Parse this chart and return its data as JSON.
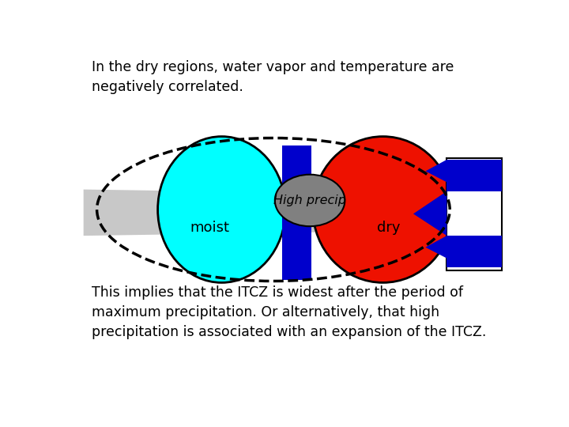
{
  "top_text": "In the dry regions, water vapor and temperature are\nnegatively correlated.",
  "bottom_text": "This implies that the ITCZ is widest after the period of\nmaximum precipitation. Or alternatively, that high\nprecipitation is associated with an expansion of the ITCZ.",
  "bg_color": "#ffffff",
  "cyan_color": "#00ffff",
  "red_color": "#ee1100",
  "gray_band_color": "#c8c8c8",
  "blue_color": "#0000cc",
  "dark_gray_circle": "#808080",
  "text_color": "#000000",
  "label_moist": "moist",
  "label_dry": "dry",
  "label_high_precip": "High precip"
}
